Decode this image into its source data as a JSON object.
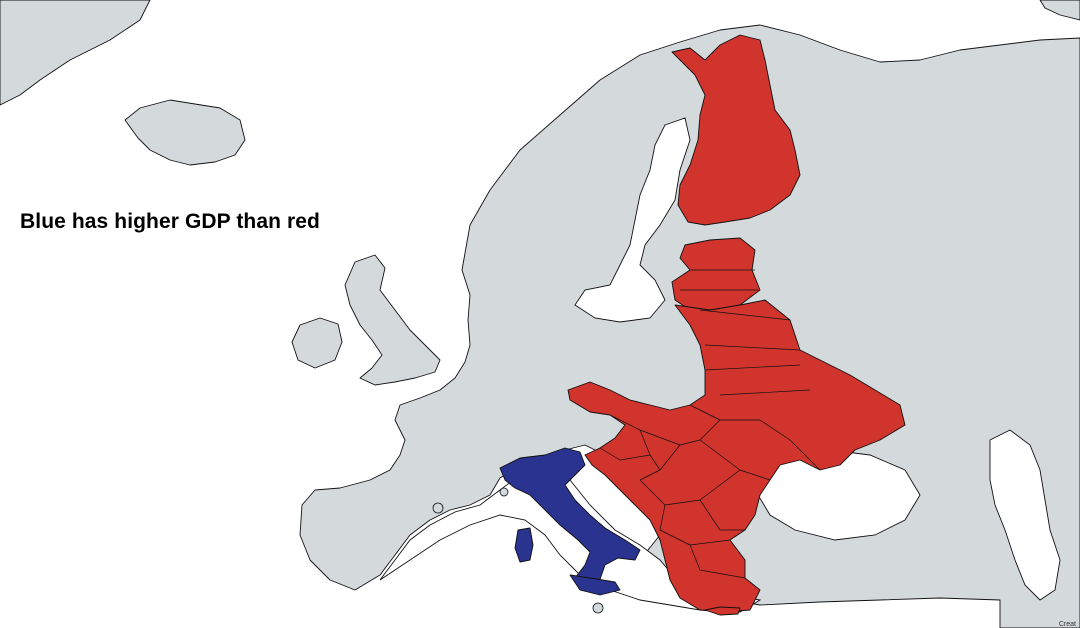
{
  "map": {
    "caption": "Blue has higher GDP than red",
    "attribution": "Creat",
    "colors": {
      "blue": "#2B3390",
      "red": "#D0342C",
      "other_land": "#D4D9DC",
      "sea": "#FFFFFF",
      "outline": "#111111"
    },
    "highlighted": {
      "blue": [
        "Italy"
      ],
      "red": [
        "Finland",
        "Estonia",
        "Latvia",
        "Lithuania",
        "Poland",
        "Belarus",
        "Ukraine",
        "Czechia",
        "Slovakia",
        "Hungary",
        "Slovenia",
        "Croatia",
        "Bosnia and Herzegovina",
        "Serbia",
        "Montenegro",
        "Kosovo",
        "Albania",
        "North Macedonia",
        "Romania",
        "Moldova",
        "Bulgaria",
        "Greece"
      ]
    }
  }
}
